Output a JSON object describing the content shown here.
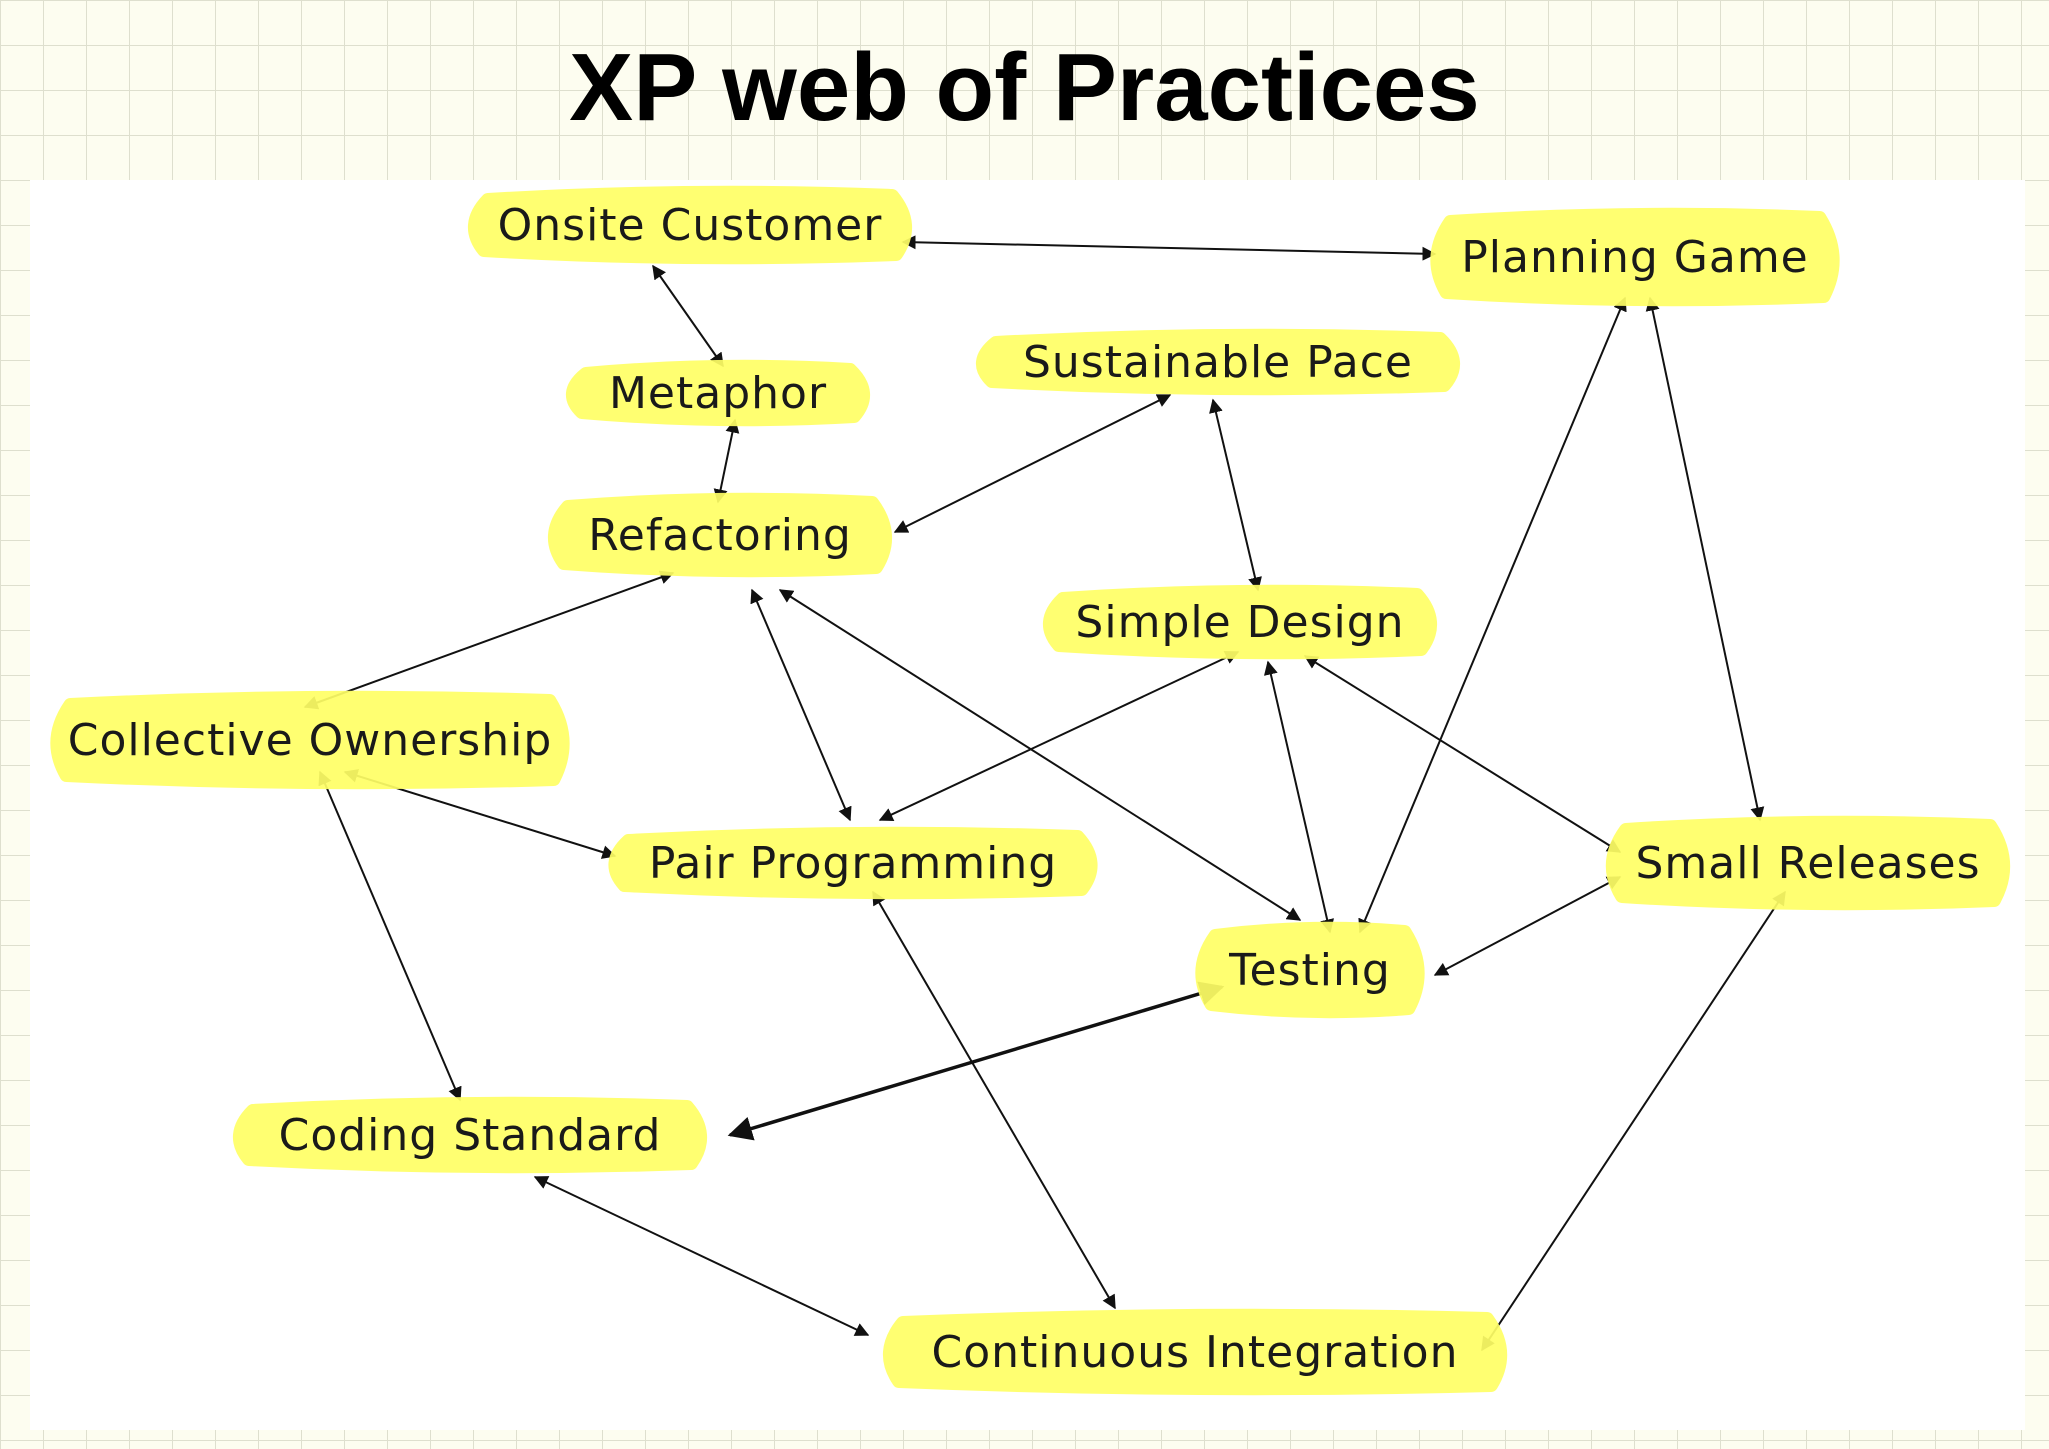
{
  "title": "XP web of Practices",
  "colors": {
    "highlight": "#ffff66",
    "edge": "#111111",
    "text": "#1a1a1a"
  },
  "nodes": [
    {
      "id": "onsite-customer",
      "label": "Onsite Customer"
    },
    {
      "id": "planning-game",
      "label": "Planning Game"
    },
    {
      "id": "metaphor",
      "label": "Metaphor"
    },
    {
      "id": "sustainable-pace",
      "label": "Sustainable Pace"
    },
    {
      "id": "refactoring",
      "label": "Refactoring"
    },
    {
      "id": "simple-design",
      "label": "Simple Design"
    },
    {
      "id": "collective-ownership",
      "label": "Collective Ownership"
    },
    {
      "id": "pair-programming",
      "label": "Pair Programming"
    },
    {
      "id": "small-releases",
      "label": "Small Releases"
    },
    {
      "id": "testing",
      "label": "Testing"
    },
    {
      "id": "coding-standard",
      "label": "Coding Standard"
    },
    {
      "id": "continuous-integration",
      "label": "Continuous Integration"
    }
  ],
  "edges": [
    {
      "from": "onsite-customer",
      "to": "planning-game"
    },
    {
      "from": "onsite-customer",
      "to": "metaphor"
    },
    {
      "from": "metaphor",
      "to": "refactoring"
    },
    {
      "from": "sustainable-pace",
      "to": "refactoring"
    },
    {
      "from": "sustainable-pace",
      "to": "simple-design"
    },
    {
      "from": "refactoring",
      "to": "collective-ownership"
    },
    {
      "from": "refactoring",
      "to": "pair-programming"
    },
    {
      "from": "refactoring",
      "to": "testing"
    },
    {
      "from": "simple-design",
      "to": "pair-programming"
    },
    {
      "from": "simple-design",
      "to": "testing"
    },
    {
      "from": "simple-design",
      "to": "small-releases"
    },
    {
      "from": "planning-game",
      "to": "testing"
    },
    {
      "from": "planning-game",
      "to": "small-releases"
    },
    {
      "from": "collective-ownership",
      "to": "pair-programming"
    },
    {
      "from": "collective-ownership",
      "to": "coding-standard"
    },
    {
      "from": "pair-programming",
      "to": "continuous-integration"
    },
    {
      "from": "testing",
      "to": "small-releases"
    },
    {
      "from": "testing",
      "to": "coding-standard"
    },
    {
      "from": "coding-standard",
      "to": "continuous-integration"
    },
    {
      "from": "small-releases",
      "to": "continuous-integration"
    }
  ]
}
